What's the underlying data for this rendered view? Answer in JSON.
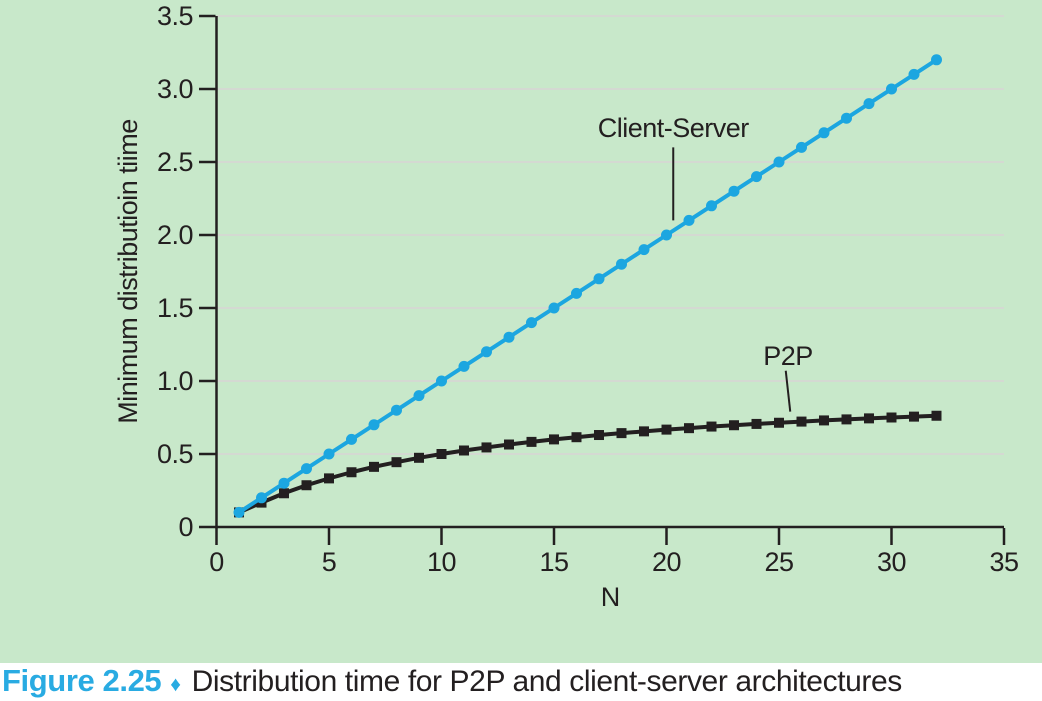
{
  "figure": {
    "label": "Figure 2.25",
    "separator": "♦",
    "caption": "Distribution time for P2P and client-server architectures"
  },
  "colors": {
    "background_green": "#c8e8ca",
    "caption_background": "#ffffff",
    "client_server_blue": "#1ca6e0",
    "p2p_black": "#231f20",
    "gridline_gray": "#d4d9d2",
    "axis_black": "#231f20",
    "accent_cyan": "#29abe2"
  },
  "chart_data": {
    "type": "line",
    "title": "",
    "xlabel": "N",
    "ylabel": "Minimum distributioin tiime",
    "xlim": [
      0,
      35
    ],
    "ylim": [
      0,
      3.5
    ],
    "x_ticks": [
      0,
      5,
      10,
      15,
      20,
      25,
      30,
      35
    ],
    "x_tick_labels": [
      "0",
      "5",
      "10",
      "15",
      "20",
      "25",
      "30",
      "35"
    ],
    "y_ticks": [
      0,
      0.5,
      1,
      1.5,
      2,
      2.5,
      3,
      3.5
    ],
    "y_tick_labels": [
      "0",
      "0.5",
      "1.0",
      "1.5",
      "2.0",
      "2.5",
      "3.0",
      "3.5"
    ],
    "grid": "horizontal",
    "legend_position": "none",
    "x": [
      1,
      2,
      3,
      4,
      5,
      6,
      7,
      8,
      9,
      10,
      11,
      12,
      13,
      14,
      15,
      16,
      17,
      18,
      19,
      20,
      21,
      22,
      23,
      24,
      25,
      26,
      27,
      28,
      29,
      30,
      31,
      32
    ],
    "series": [
      {
        "name": "P2P",
        "marker": "square",
        "color": "#231f20",
        "values": [
          0.1,
          0.167,
          0.231,
          0.286,
          0.333,
          0.375,
          0.412,
          0.444,
          0.474,
          0.5,
          0.524,
          0.545,
          0.565,
          0.583,
          0.6,
          0.615,
          0.63,
          0.643,
          0.655,
          0.667,
          0.677,
          0.688,
          0.697,
          0.706,
          0.714,
          0.722,
          0.73,
          0.737,
          0.744,
          0.75,
          0.756,
          0.762
        ]
      },
      {
        "name": "Client-Server",
        "marker": "circle",
        "color": "#1ca6e0",
        "values": [
          0.1,
          0.2,
          0.3,
          0.4,
          0.5,
          0.6,
          0.7,
          0.8,
          0.9,
          1.0,
          1.1,
          1.2,
          1.3,
          1.4,
          1.5,
          1.6,
          1.7,
          1.8,
          1.9,
          2.0,
          2.1,
          2.2,
          2.3,
          2.4,
          2.5,
          2.6,
          2.7,
          2.8,
          2.9,
          3.0,
          3.1,
          3.2
        ]
      }
    ],
    "annotations": [
      {
        "name": "client-server-label",
        "text": "Client-Server",
        "x": 20.3,
        "y": 2.67,
        "leader": {
          "x1": 20.3,
          "y1": 2.6,
          "x2": 20.3,
          "y2": 2.1
        }
      },
      {
        "name": "p2p-label",
        "text": "P2P",
        "x": 25.4,
        "y": 1.11,
        "leader": {
          "x1": 25.3,
          "y1": 1.07,
          "x2": 25.5,
          "y2": 0.79
        }
      }
    ]
  }
}
